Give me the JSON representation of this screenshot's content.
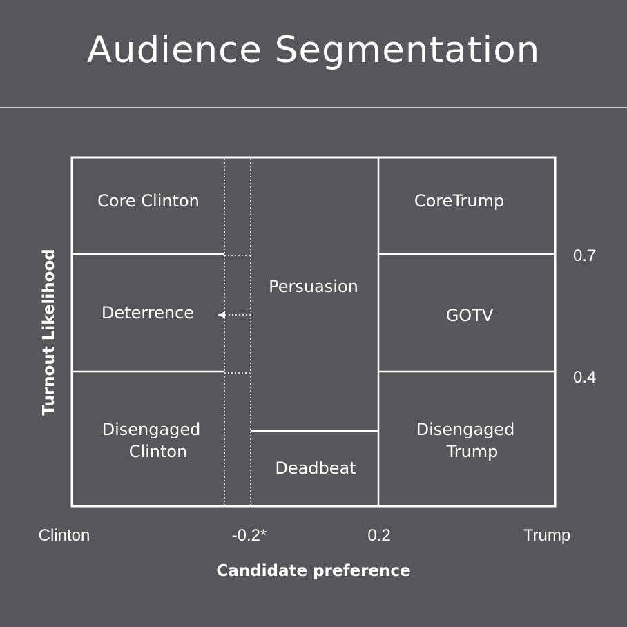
{
  "slide": {
    "title": "Audience Segmentation"
  },
  "axes": {
    "y_title": "Turnout Likelihood",
    "x_title": "Candidate preference",
    "x_ticks": [
      "Clinton",
      "-0.2*",
      "0.2",
      "Trump"
    ],
    "y_ticks": [
      "0.7",
      "0.4"
    ]
  },
  "segments": {
    "core_clinton": "Core Clinton",
    "deterrence": "Deterrence",
    "disengaged_clinton_1": "Disengaged",
    "disengaged_clinton_2": "Clinton",
    "persuasion": "Persuasion",
    "deadbeat": "Deadbeat",
    "core_trump": "CoreTrump",
    "gotv": "GOTV",
    "disengaged_trump_1": "Disengaged",
    "disengaged_trump_2": "Trump"
  },
  "colors": {
    "background": "#55575b",
    "lines": "#ffffff",
    "rule": "#c9c9c9"
  }
}
